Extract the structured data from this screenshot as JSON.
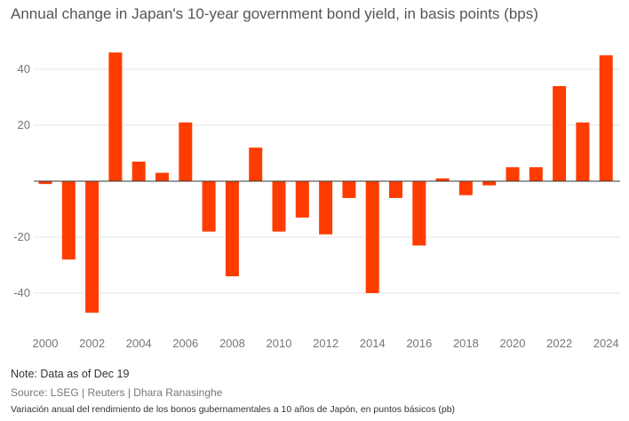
{
  "title": "Annual change in Japan's 10-year government bond yield, in basis points (bps)",
  "note": "Note: Data as of Dec 19",
  "source": "Source: LSEG | Reuters | Dhara Ranasinghe",
  "subtitle_es": "Variación anual del rendimiento de los bonos gubernamentales a 10 años de Japón, en puntos básicos (pb)",
  "colors": {
    "bar": "#ff3c00",
    "grid": "#e3e3e3",
    "zero": "#333333",
    "label": "#777777"
  },
  "chart_data": {
    "type": "bar",
    "title": "Annual change in Japan's 10-year government bond yield, in basis points (bps)",
    "xlabel": "",
    "ylabel": "",
    "categories": [
      "2000",
      "2001",
      "2002",
      "2003",
      "2004",
      "2005",
      "2006",
      "2007",
      "2008",
      "2009",
      "2010",
      "2011",
      "2012",
      "2013",
      "2014",
      "2015",
      "2016",
      "2017",
      "2018",
      "2019",
      "2020",
      "2021",
      "2022",
      "2023",
      "2024"
    ],
    "values": [
      -1,
      -28,
      -47,
      46,
      7,
      3,
      21,
      -18,
      -34,
      12,
      -18,
      -13,
      -19,
      -6,
      -40,
      -6,
      -23,
      1,
      -5,
      -1.5,
      5,
      5,
      34,
      21,
      45
    ],
    "ylim": [
      -50,
      50
    ],
    "yticks": [
      -40,
      -20,
      20,
      40
    ],
    "xticks": [
      "2000",
      "2002",
      "2004",
      "2006",
      "2008",
      "2010",
      "2012",
      "2014",
      "2016",
      "2018",
      "2020",
      "2022",
      "2024"
    ],
    "grid": true
  }
}
